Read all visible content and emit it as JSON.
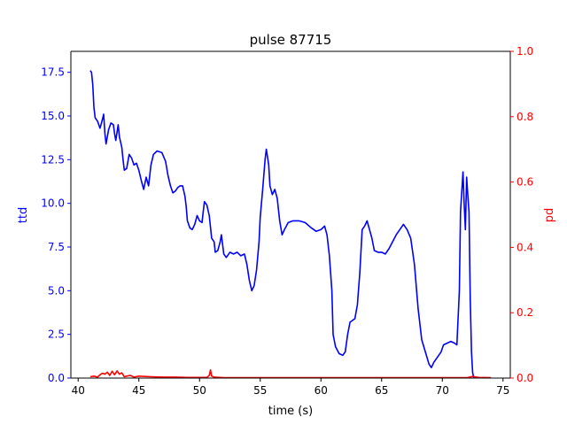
{
  "chart_data": {
    "type": "line",
    "title": "pulse 87715",
    "xlabel": "time (s)",
    "ylabel_left": "ttd",
    "ylabel_right": "pd",
    "xlim": [
      39.4,
      75.6
    ],
    "ylim_left": [
      0,
      18.7
    ],
    "ylim_right": [
      0,
      1.0
    ],
    "x_ticks": [
      40,
      45,
      50,
      55,
      60,
      65,
      70,
      75
    ],
    "x_tick_labels": [
      "40",
      "45",
      "50",
      "55",
      "60",
      "65",
      "70",
      "75"
    ],
    "y_left_ticks": [
      0,
      2.5,
      5,
      7.5,
      10,
      12.5,
      15,
      17.5
    ],
    "y_left_tick_labels": [
      "0.0",
      "2.5",
      "5.0",
      "7.5",
      "10.0",
      "12.5",
      "15.0",
      "17.5"
    ],
    "y_right_ticks": [
      0,
      0.2,
      0.4,
      0.6,
      0.8,
      1.0
    ],
    "y_right_tick_labels": [
      "0.0",
      "0.2",
      "0.4",
      "0.6",
      "0.8",
      "1.0"
    ],
    "grid": false,
    "colors": {
      "ttd": "#0000ff",
      "pd": "#ff0000",
      "axis": "#000000"
    },
    "series": [
      {
        "axis": "left",
        "color": "#0000ff",
        "points": [
          [
            41.0,
            17.6
          ],
          [
            41.1,
            17.5
          ],
          [
            41.2,
            16.8
          ],
          [
            41.3,
            15.5
          ],
          [
            41.4,
            14.9
          ],
          [
            41.6,
            14.7
          ],
          [
            41.8,
            14.3
          ],
          [
            42.0,
            14.8
          ],
          [
            42.1,
            15.1
          ],
          [
            42.2,
            14.0
          ],
          [
            42.3,
            13.4
          ],
          [
            42.5,
            14.2
          ],
          [
            42.7,
            14.6
          ],
          [
            42.9,
            14.5
          ],
          [
            43.0,
            14.0
          ],
          [
            43.1,
            13.6
          ],
          [
            43.3,
            14.5
          ],
          [
            43.4,
            13.8
          ],
          [
            43.6,
            13.2
          ],
          [
            43.7,
            12.5
          ],
          [
            43.8,
            11.9
          ],
          [
            44.0,
            12.0
          ],
          [
            44.2,
            12.8
          ],
          [
            44.4,
            12.6
          ],
          [
            44.6,
            12.2
          ],
          [
            44.8,
            12.3
          ],
          [
            45.0,
            11.9
          ],
          [
            45.2,
            11.3
          ],
          [
            45.4,
            10.8
          ],
          [
            45.6,
            11.5
          ],
          [
            45.8,
            11.0
          ],
          [
            46.0,
            12.2
          ],
          [
            46.2,
            12.8
          ],
          [
            46.5,
            13.0
          ],
          [
            46.9,
            12.9
          ],
          [
            47.2,
            12.4
          ],
          [
            47.4,
            11.6
          ],
          [
            47.6,
            11.0
          ],
          [
            47.8,
            10.6
          ],
          [
            48.0,
            10.7
          ],
          [
            48.2,
            10.9
          ],
          [
            48.4,
            11.0
          ],
          [
            48.6,
            11.0
          ],
          [
            48.8,
            10.4
          ],
          [
            48.9,
            9.8
          ],
          [
            49.0,
            9.0
          ],
          [
            49.2,
            8.6
          ],
          [
            49.4,
            8.5
          ],
          [
            49.6,
            8.8
          ],
          [
            49.8,
            9.3
          ],
          [
            50.0,
            9.0
          ],
          [
            50.2,
            8.9
          ],
          [
            50.4,
            10.1
          ],
          [
            50.6,
            9.9
          ],
          [
            50.8,
            9.3
          ],
          [
            51.0,
            8.0
          ],
          [
            51.2,
            7.8
          ],
          [
            51.3,
            7.2
          ],
          [
            51.5,
            7.3
          ],
          [
            51.7,
            7.8
          ],
          [
            51.8,
            8.2
          ],
          [
            52.0,
            7.1
          ],
          [
            52.2,
            6.9
          ],
          [
            52.5,
            7.2
          ],
          [
            52.8,
            7.1
          ],
          [
            53.1,
            7.2
          ],
          [
            53.4,
            7.0
          ],
          [
            53.7,
            7.1
          ],
          [
            53.9,
            6.5
          ],
          [
            54.1,
            5.6
          ],
          [
            54.3,
            5.0
          ],
          [
            54.5,
            5.3
          ],
          [
            54.7,
            6.2
          ],
          [
            54.9,
            7.8
          ],
          [
            55.0,
            9.2
          ],
          [
            55.2,
            10.8
          ],
          [
            55.4,
            12.5
          ],
          [
            55.5,
            13.1
          ],
          [
            55.7,
            12.2
          ],
          [
            55.8,
            11.0
          ],
          [
            56.0,
            10.5
          ],
          [
            56.2,
            10.8
          ],
          [
            56.4,
            10.3
          ],
          [
            56.6,
            9.0
          ],
          [
            56.8,
            8.2
          ],
          [
            57.0,
            8.5
          ],
          [
            57.3,
            8.9
          ],
          [
            57.7,
            9.0
          ],
          [
            58.2,
            9.0
          ],
          [
            58.7,
            8.9
          ],
          [
            59.2,
            8.6
          ],
          [
            59.6,
            8.4
          ],
          [
            60.0,
            8.5
          ],
          [
            60.3,
            8.7
          ],
          [
            60.5,
            8.2
          ],
          [
            60.7,
            7.0
          ],
          [
            60.9,
            5.0
          ],
          [
            61.0,
            2.5
          ],
          [
            61.2,
            1.8
          ],
          [
            61.5,
            1.4
          ],
          [
            61.8,
            1.3
          ],
          [
            62.0,
            1.5
          ],
          [
            62.2,
            2.5
          ],
          [
            62.4,
            3.2
          ],
          [
            62.6,
            3.3
          ],
          [
            62.8,
            3.4
          ],
          [
            63.0,
            4.2
          ],
          [
            63.2,
            6.0
          ],
          [
            63.4,
            8.5
          ],
          [
            63.6,
            8.7
          ],
          [
            63.8,
            9.0
          ],
          [
            64.0,
            8.5
          ],
          [
            64.2,
            8.0
          ],
          [
            64.4,
            7.3
          ],
          [
            64.7,
            7.2
          ],
          [
            65.0,
            7.2
          ],
          [
            65.3,
            7.1
          ],
          [
            65.6,
            7.4
          ],
          [
            65.9,
            7.8
          ],
          [
            66.2,
            8.2
          ],
          [
            66.5,
            8.5
          ],
          [
            66.8,
            8.8
          ],
          [
            67.1,
            8.5
          ],
          [
            67.4,
            8.0
          ],
          [
            67.7,
            6.5
          ],
          [
            68.0,
            4.0
          ],
          [
            68.3,
            2.2
          ],
          [
            68.6,
            1.5
          ],
          [
            68.9,
            0.8
          ],
          [
            69.1,
            0.6
          ],
          [
            69.3,
            0.9
          ],
          [
            69.6,
            1.2
          ],
          [
            69.9,
            1.5
          ],
          [
            70.1,
            1.9
          ],
          [
            70.4,
            2.0
          ],
          [
            70.7,
            2.1
          ],
          [
            71.0,
            2.0
          ],
          [
            71.2,
            1.9
          ],
          [
            71.4,
            5.0
          ],
          [
            71.5,
            9.5
          ],
          [
            71.7,
            11.8
          ],
          [
            71.8,
            10.0
          ],
          [
            71.9,
            8.5
          ],
          [
            72.0,
            11.5
          ],
          [
            72.1,
            10.5
          ],
          [
            72.2,
            9.5
          ],
          [
            72.3,
            4.5
          ],
          [
            72.4,
            1.5
          ],
          [
            72.5,
            0.3
          ],
          [
            72.6,
            0.0
          ]
        ]
      },
      {
        "axis": "right",
        "color": "#ff0000",
        "points": [
          [
            41.0,
            0.004
          ],
          [
            41.3,
            0.006
          ],
          [
            41.6,
            0.003
          ],
          [
            41.8,
            0.01
          ],
          [
            42.0,
            0.015
          ],
          [
            42.2,
            0.012
          ],
          [
            42.4,
            0.018
          ],
          [
            42.6,
            0.008
          ],
          [
            42.8,
            0.021
          ],
          [
            43.0,
            0.01
          ],
          [
            43.2,
            0.022
          ],
          [
            43.4,
            0.012
          ],
          [
            43.6,
            0.016
          ],
          [
            43.8,
            0.004
          ],
          [
            44.0,
            0.006
          ],
          [
            44.3,
            0.008
          ],
          [
            44.6,
            0.003
          ],
          [
            45.0,
            0.006
          ],
          [
            45.5,
            0.005
          ],
          [
            46.0,
            0.004
          ],
          [
            47.0,
            0.003
          ],
          [
            48.0,
            0.003
          ],
          [
            49.0,
            0.002
          ],
          [
            50.0,
            0.002
          ],
          [
            50.6,
            0.002
          ],
          [
            50.8,
            0.008
          ],
          [
            50.9,
            0.025
          ],
          [
            51.0,
            0.006
          ],
          [
            51.2,
            0.003
          ],
          [
            52.0,
            0.001
          ],
          [
            53.0,
            0.001
          ],
          [
            55.0,
            0.001
          ],
          [
            60.0,
            0.001
          ],
          [
            65.0,
            0.001
          ],
          [
            70.0,
            0.001
          ],
          [
            72.0,
            0.001
          ],
          [
            72.5,
            0.005
          ],
          [
            73.0,
            0.002
          ],
          [
            74.0,
            0.001
          ]
        ]
      }
    ]
  }
}
